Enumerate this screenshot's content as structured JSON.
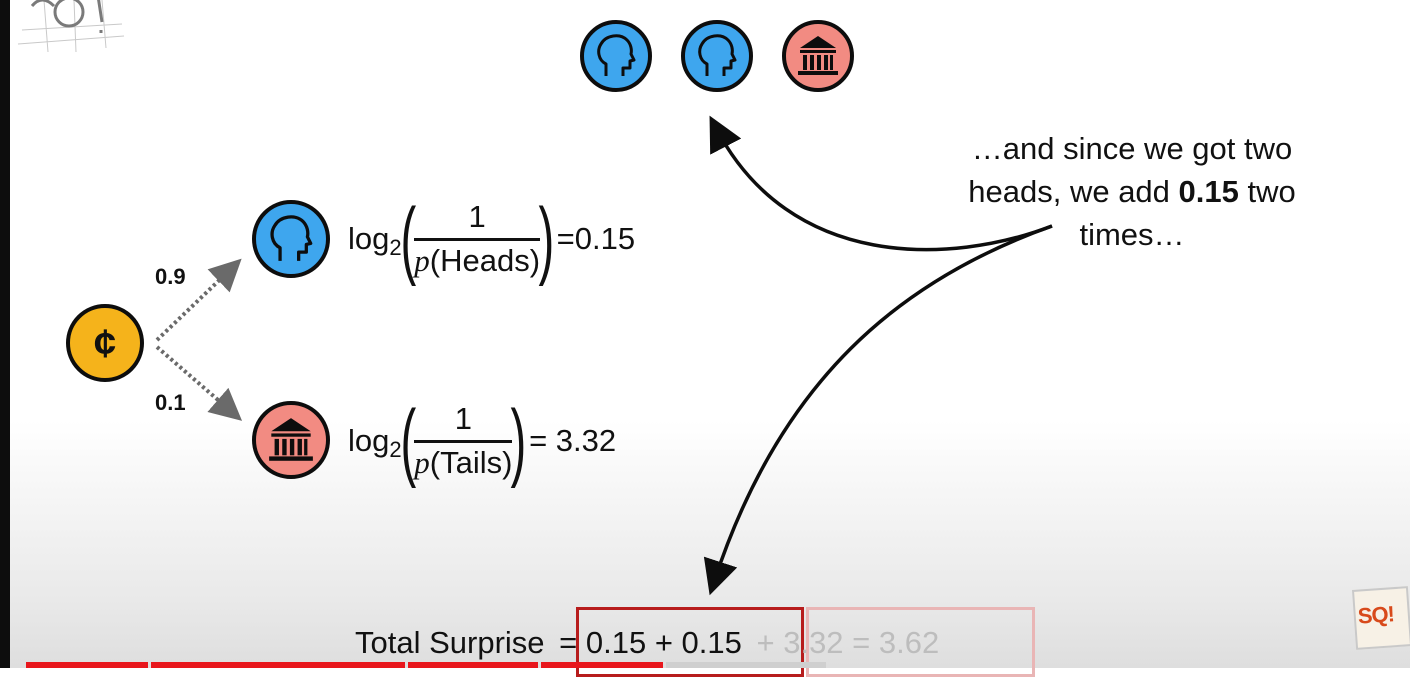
{
  "coin": {
    "symbol": "¢"
  },
  "branches": {
    "heads": {
      "probability_label": "0.9",
      "formula": {
        "log": "log",
        "base": "2",
        "numerator": "1",
        "p": "p",
        "den_text": "(Heads)",
        "result": "=0.15"
      }
    },
    "tails": {
      "probability_label": "0.1",
      "formula": {
        "log": "log",
        "base": "2",
        "numerator": "1",
        "p": "p",
        "den_text": "(Tails)",
        "result": "= 3.32"
      }
    }
  },
  "outcomes": [
    "heads",
    "heads",
    "tails"
  ],
  "caption": {
    "line1": "…and since we got two",
    "line2_pre": "heads, we add ",
    "line2_bold": "0.15",
    "line2_post": " two",
    "line3": "times…"
  },
  "total": {
    "label": "Total Surprise",
    "highlighted": "= 0.15 + 0.15",
    "faded": "+ 3.32 = 3.62"
  },
  "logo": {
    "text": "SQ!"
  },
  "video_progress": {
    "watched_fraction": 0.47
  },
  "colors": {
    "heads_blue": "#3ea6ee",
    "tails_red": "#f28b82",
    "coin_gold": "#f5b31b",
    "highlight_box": "#b71c1c",
    "progress_red": "#e8161c"
  }
}
